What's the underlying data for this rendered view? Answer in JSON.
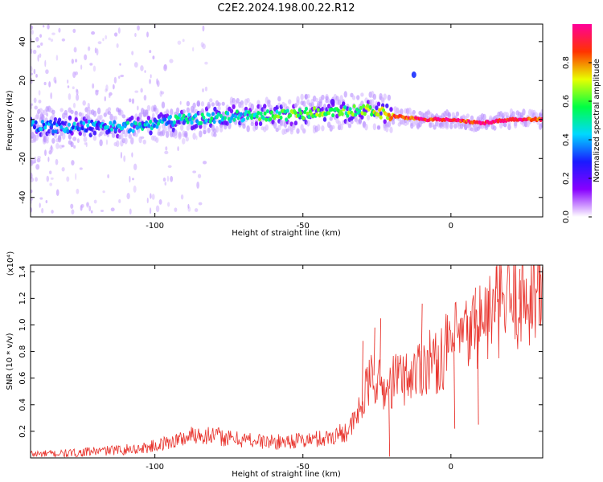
{
  "title": "C2E2.2024.198.00.22.R12",
  "chart_data": [
    {
      "type": "heatmap",
      "xlabel": "Height of straight line (km)",
      "ylabel": "Frequency (Hz)",
      "xlim": [
        -142,
        31
      ],
      "ylim": [
        -50,
        49
      ],
      "xticks": [
        -100,
        -50,
        0
      ],
      "yticks": [
        -40,
        -20,
        0,
        20,
        40
      ],
      "colorbar": {
        "label": "Normalized spectral amplitude",
        "range": [
          0.0,
          1.0
        ],
        "ticks": [
          0.0,
          0.2,
          0.4,
          0.6,
          0.8
        ],
        "colors": [
          "#ffffff",
          "#8800ff",
          "#1a1aff",
          "#00d8ff",
          "#00ff44",
          "#e8ff00",
          "#ff3300",
          "#ff0099"
        ]
      },
      "ridge": {
        "x": [
          -142,
          -130,
          -120,
          -110,
          -100,
          -90,
          -80,
          -70,
          -60,
          -50,
          -40,
          -35,
          -30,
          -25,
          -20,
          -15,
          -10,
          -5,
          0,
          5,
          10,
          15,
          20,
          25,
          31
        ],
        "frequency": [
          -3,
          -4,
          -3,
          -4,
          -2,
          0,
          1,
          2,
          2,
          3,
          4,
          4,
          5,
          4,
          2,
          1,
          0,
          0,
          0,
          -1,
          -2,
          -1,
          0,
          0,
          0
        ],
        "amplitude": [
          0.35,
          0.35,
          0.35,
          0.4,
          0.4,
          0.45,
          0.45,
          0.5,
          0.55,
          0.62,
          0.6,
          0.58,
          0.6,
          0.65,
          0.8,
          0.85,
          0.9,
          0.92,
          0.95,
          0.9,
          0.92,
          0.95,
          0.9,
          0.9,
          0.88
        ]
      },
      "blobs": [
        {
          "x": -12.5,
          "frequency": 23,
          "amplitude": 0.3
        },
        {
          "x": -40,
          "frequency": 9,
          "amplitude": 0.2
        }
      ]
    },
    {
      "type": "line",
      "xlabel": "Height of straight line (km)",
      "ylabel": "SNR (10 * v/v)",
      "yscale_note": "(x10⁴)",
      "xlim": [
        -142,
        31
      ],
      "ylim": [
        0,
        1.45
      ],
      "xticks": [
        -100,
        -50,
        0
      ],
      "yticks": [
        0.2,
        0.4,
        0.6,
        0.8,
        1.0,
        1.2,
        1.4
      ],
      "color": "#e8322b",
      "series": [
        {
          "x": [
            -142,
            -135,
            -128,
            -120,
            -112,
            -105,
            -100,
            -95,
            -90,
            -86,
            -82,
            -78,
            -74,
            -70,
            -66,
            -62,
            -58,
            -54,
            -50,
            -46,
            -42,
            -38,
            -34,
            -32,
            -30,
            -28,
            -26,
            -24,
            -22,
            -20,
            -18,
            -15,
            -12,
            -10,
            -7,
            -5,
            -2,
            0,
            3,
            6,
            9,
            12,
            15,
            18,
            21,
            24,
            27,
            31
          ],
          "y": [
            0.03,
            0.03,
            0.035,
            0.05,
            0.06,
            0.07,
            0.09,
            0.12,
            0.15,
            0.18,
            0.17,
            0.16,
            0.14,
            0.14,
            0.13,
            0.12,
            0.12,
            0.13,
            0.13,
            0.14,
            0.15,
            0.18,
            0.22,
            0.3,
            0.4,
            0.55,
            0.62,
            0.55,
            0.5,
            0.56,
            0.62,
            0.6,
            0.65,
            0.7,
            0.75,
            0.7,
            0.8,
            0.85,
            0.9,
            0.92,
            1.0,
            1.05,
            1.1,
            1.15,
            1.18,
            1.2,
            1.22,
            1.25
          ]
        }
      ],
      "annotations": [
        {
          "x": -30,
          "y": 0.88
        },
        {
          "x": -26,
          "y": 0.98
        },
        {
          "x": -24,
          "y": 1.05
        },
        {
          "x": -10,
          "y": 1.16
        },
        {
          "x": 8,
          "y": 1.28
        },
        {
          "x": 15,
          "y": 1.44
        },
        {
          "x": 23,
          "y": 1.42
        },
        {
          "x": 30,
          "y": 1.38
        },
        {
          "x": 1,
          "y": 0.22
        },
        {
          "x": 9,
          "y": 0.25
        },
        {
          "x": -21,
          "y": 0.01
        }
      ]
    }
  ]
}
